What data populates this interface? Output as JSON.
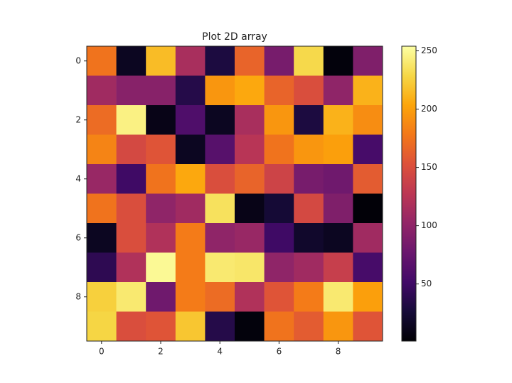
{
  "chart_data": {
    "type": "heatmap",
    "title": "Plot 2D array",
    "colormap": "inferno",
    "z": [
      [
        175,
        15,
        215,
        115,
        30,
        165,
        85,
        230,
        5,
        90
      ],
      [
        110,
        95,
        95,
        35,
        195,
        205,
        165,
        150,
        100,
        210
      ],
      [
        170,
        245,
        10,
        60,
        15,
        115,
        195,
        30,
        210,
        190
      ],
      [
        185,
        145,
        155,
        15,
        65,
        125,
        175,
        195,
        200,
        55
      ],
      [
        105,
        50,
        175,
        205,
        150,
        165,
        140,
        85,
        80,
        160
      ],
      [
        175,
        150,
        100,
        110,
        235,
        10,
        25,
        145,
        90,
        3
      ],
      [
        15,
        150,
        120,
        180,
        100,
        105,
        50,
        20,
        15,
        110
      ],
      [
        40,
        120,
        250,
        180,
        240,
        238,
        100,
        110,
        135,
        55
      ],
      [
        225,
        240,
        80,
        180,
        170,
        120,
        155,
        180,
        240,
        200
      ],
      [
        228,
        150,
        155,
        220,
        35,
        5,
        175,
        160,
        195,
        155
      ]
    ],
    "xlim": [
      -0.5,
      9.5
    ],
    "ylim": [
      9.5,
      -0.5
    ],
    "xticks": [
      0,
      2,
      4,
      6,
      8
    ],
    "yticks": [
      0,
      2,
      4,
      6,
      8
    ],
    "clim": [
      1,
      254
    ],
    "cticks": [
      50,
      100,
      150,
      200,
      250
    ]
  }
}
